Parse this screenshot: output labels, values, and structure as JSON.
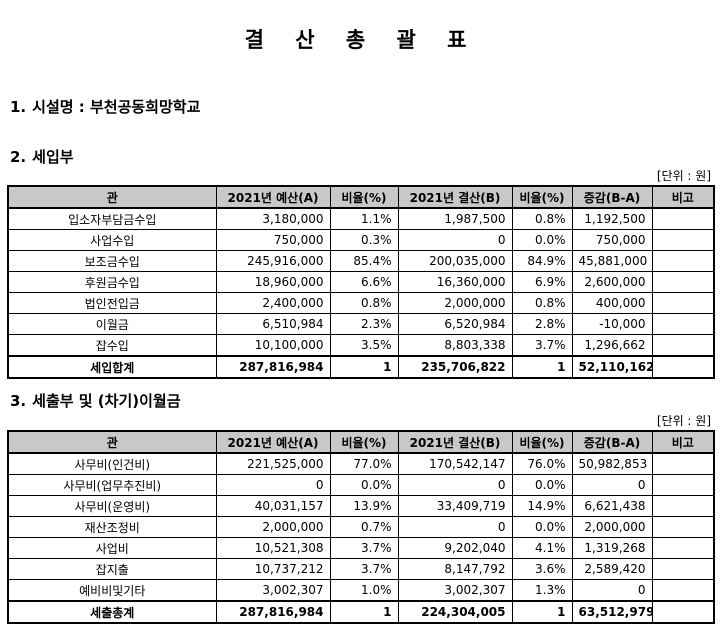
{
  "title": "결 산 총 괄 표",
  "facility": {
    "num": "1.",
    "label": "시설명 : 부천공동희망학교"
  },
  "unit_label": "[단위 : 원]",
  "columns": [
    "관",
    "2021년 예산(A)",
    "비율(%)",
    "2021년 결산(B)",
    "비율(%)",
    "증감(B-A)",
    "비고"
  ],
  "income": {
    "num": "2.",
    "heading": "세입부",
    "rows": [
      [
        "입소자부담금수입",
        "3,180,000",
        "1.1%",
        "1,987,500",
        "0.8%",
        "1,192,500",
        ""
      ],
      [
        "사업수입",
        "750,000",
        "0.3%",
        "0",
        "0.0%",
        "750,000",
        ""
      ],
      [
        "보조금수입",
        "245,916,000",
        "85.4%",
        "200,035,000",
        "84.9%",
        "45,881,000",
        ""
      ],
      [
        "후원금수입",
        "18,960,000",
        "6.6%",
        "16,360,000",
        "6.9%",
        "2,600,000",
        ""
      ],
      [
        "법인전입금",
        "2,400,000",
        "0.8%",
        "2,000,000",
        "0.8%",
        "400,000",
        ""
      ],
      [
        "이월금",
        "6,510,984",
        "2.3%",
        "6,520,984",
        "2.8%",
        "-10,000",
        ""
      ],
      [
        "잡수입",
        "10,100,000",
        "3.5%",
        "8,803,338",
        "3.7%",
        "1,296,662",
        ""
      ]
    ],
    "total": [
      "세입합계",
      "287,816,984",
      "1",
      "235,706,822",
      "1",
      "52,110,162",
      ""
    ]
  },
  "expense": {
    "num": "3.",
    "heading": "세출부 및 (차기)이월금",
    "rows": [
      [
        "사무비(인건비)",
        "221,525,000",
        "77.0%",
        "170,542,147",
        "76.0%",
        "50,982,853",
        ""
      ],
      [
        "사무비(업무추진비)",
        "0",
        "0.0%",
        "0",
        "0.0%",
        "0",
        ""
      ],
      [
        "사무비(운영비)",
        "40,031,157",
        "13.9%",
        "33,409,719",
        "14.9%",
        "6,621,438",
        ""
      ],
      [
        "재산조정비",
        "2,000,000",
        "0.7%",
        "0",
        "0.0%",
        "2,000,000",
        ""
      ],
      [
        "사업비",
        "10,521,308",
        "3.7%",
        "9,202,040",
        "4.1%",
        "1,319,268",
        ""
      ],
      [
        "잡지출",
        "10,737,212",
        "3.7%",
        "8,147,792",
        "3.6%",
        "2,589,420",
        ""
      ],
      [
        "예비비및기타",
        "3,002,307",
        "1.0%",
        "3,002,307",
        "1.3%",
        "0",
        ""
      ]
    ],
    "total": [
      "세출총계",
      "287,816,984",
      "1",
      "224,304,005",
      "1",
      "63,512,979",
      ""
    ]
  }
}
